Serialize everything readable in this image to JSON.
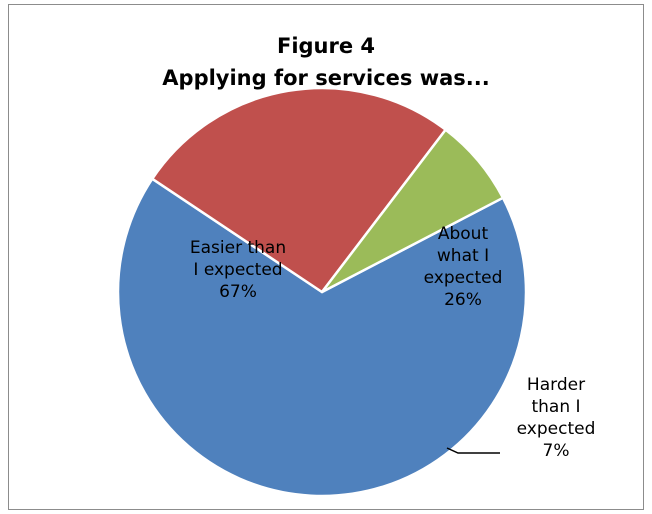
{
  "chart_data": {
    "type": "pie",
    "title": "Figure 4\nApplying for services was...",
    "categories": [
      "Easier than I expected",
      "About what I expected",
      "Harder than I expected"
    ],
    "values": [
      67,
      26,
      7
    ],
    "labels": [
      {
        "lines": [
          "Easier than",
          "I expected",
          "67%"
        ]
      },
      {
        "lines": [
          "About",
          "what I",
          "expected",
          "26%"
        ]
      },
      {
        "lines": [
          "Harder",
          "than I",
          "expected",
          "7%"
        ]
      }
    ],
    "colors": [
      "#4f81bd",
      "#c0504d",
      "#9bbb59"
    ],
    "legend": "none"
  }
}
